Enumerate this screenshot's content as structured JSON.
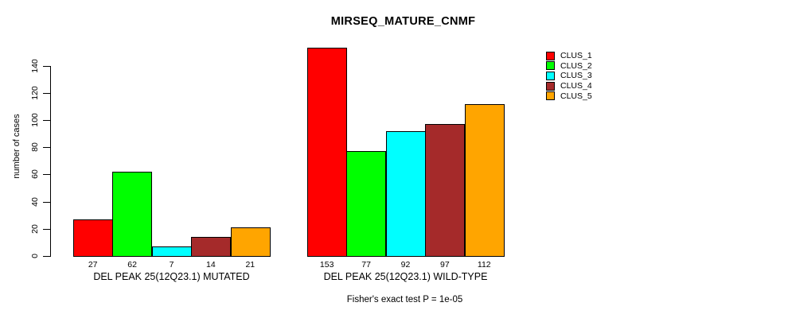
{
  "chart": {
    "title": "MIRSEQ_MATURE_CNMF",
    "ylabel": "number of cases",
    "annotation": "Fisher's exact test P = 1e-05"
  },
  "chart_data": {
    "type": "bar",
    "title": "MIRSEQ_MATURE_CNMF",
    "xlabel": "",
    "ylabel": "number of cases",
    "ylim": [
      0,
      153
    ],
    "yticks": [
      0,
      20,
      40,
      60,
      80,
      100,
      120,
      140
    ],
    "grid": false,
    "legend_position": "top-right",
    "bar_value_labels_shown": true,
    "categories": [
      "DEL PEAK 25(12Q23.1) MUTATED",
      "DEL PEAK 25(12Q23.1) WILD-TYPE"
    ],
    "series": [
      {
        "name": "CLUS_1",
        "color": "#ff0000",
        "values": [
          27,
          153
        ]
      },
      {
        "name": "CLUS_2",
        "color": "#00ff00",
        "values": [
          62,
          77
        ]
      },
      {
        "name": "CLUS_3",
        "color": "#00ffff",
        "values": [
          7,
          92
        ]
      },
      {
        "name": "CLUS_4",
        "color": "#a52a2a",
        "values": [
          14,
          97
        ]
      },
      {
        "name": "CLUS_5",
        "color": "#ffa500",
        "values": [
          21,
          112
        ]
      }
    ],
    "annotation": "Fisher's exact test P = 1e-05",
    "axis_color": "#000000",
    "background_color": "#ffffff"
  }
}
